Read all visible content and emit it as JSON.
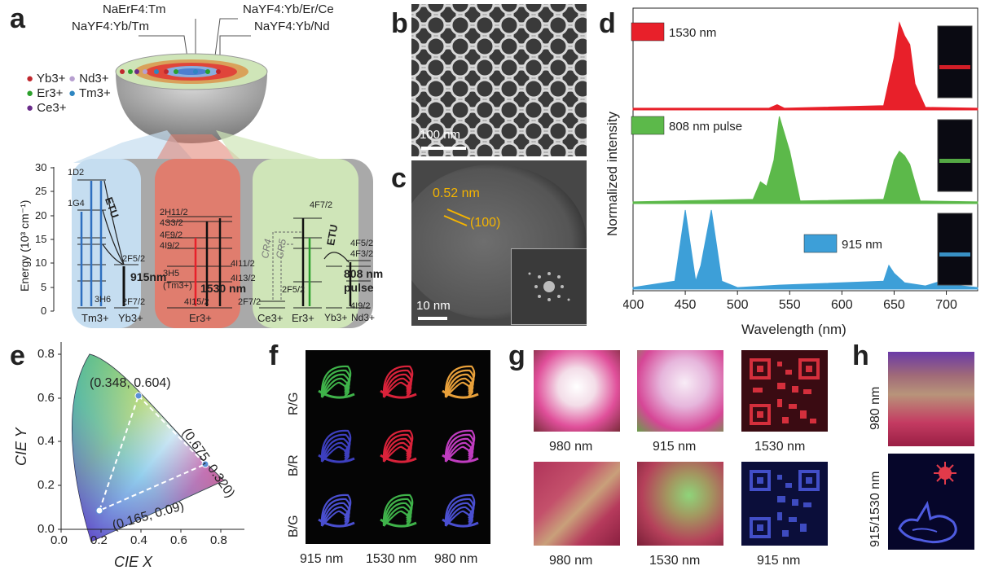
{
  "panels": {
    "a": "a",
    "b": "b",
    "c": "c",
    "d": "d",
    "e": "e",
    "f": "f",
    "g": "g",
    "h": "h"
  },
  "panel_a": {
    "shell_labels": [
      "NaErF4:Tm",
      "NaYF4:Yb/Er/Ce",
      "NaYF4:Yb/Tm",
      "NaYF4:Yb/Nd"
    ],
    "ion_legend": [
      "Yb3+",
      "Nd3+",
      "Er3+",
      "Tm3+",
      "Ce3+"
    ],
    "ion_colors": {
      "Yb": "#c0272d",
      "Nd": "#b79fd0",
      "Er": "#2ca02c",
      "Tm": "#2e86c1",
      "Ce": "#6a2c8a"
    },
    "y_axis_label": "Energy (10³ cm⁻¹)",
    "y_ticks": [
      "0",
      "5",
      "10",
      "15",
      "20",
      "25",
      "30"
    ],
    "bottom_ions": [
      "Tm3+",
      "Yb3+",
      "Er3+",
      "Ce3+",
      "Er3+",
      "Yb3+",
      "Nd3+"
    ],
    "excitations": [
      "915nm",
      "1530 nm",
      "808 nm",
      "pulse"
    ],
    "etu": "ETU",
    "cr": [
      "CR4",
      "CR5"
    ],
    "level_labels": [
      "1D2",
      "1G4",
      "3H6",
      "2F5/2",
      "2F7/2",
      "3H5",
      "(Tm3+)",
      "2H11/2",
      "4S3/2",
      "4F9/2",
      "4I9/2",
      "4I11/2",
      "4I13/2",
      "4I15/2",
      "2F7/2",
      "2F5/2",
      "4F7/2",
      "4F5/2",
      "4F3/2",
      "4I9/2"
    ],
    "colors": {
      "tm_bg": "#c5ddf0",
      "er_bg": "#e07d6e",
      "ce_bg": "#cfe5b8",
      "shell_gray": "#a9a9a9"
    }
  },
  "panel_b": {
    "scale_bar": "100 nm"
  },
  "panel_c": {
    "lattice": "0.52 nm",
    "plane": "(100)",
    "scale_bar": "10 nm"
  },
  "panel_d": {
    "ylabel": "Normalized intensity",
    "xlabel": "Wavelength (nm)",
    "xticks": [
      400,
      450,
      500,
      550,
      600,
      650,
      700
    ],
    "legends": [
      {
        "label": "1530 nm",
        "color": "#e8202a"
      },
      {
        "label": "808 nm pulse",
        "color": "#5cb94a"
      },
      {
        "label": "915 nm",
        "color": "#3d9fd8"
      }
    ]
  },
  "panel_e": {
    "xlabel": "CIE X",
    "ylabel": "CIE Y",
    "xticks": [
      "0.0",
      "0.2",
      "0.4",
      "0.6",
      "0.8"
    ],
    "yticks": [
      "0.0",
      "0.2",
      "0.4",
      "0.6",
      "0.8"
    ],
    "points": [
      "(0.348, 0.604)",
      "(0.675, 0.320)",
      "(0.165, 0.09)"
    ]
  },
  "panel_f": {
    "rows": [
      "R/G",
      "B/R",
      "B/G"
    ],
    "cols": [
      "915 nm",
      "1530 nm",
      "980 nm"
    ],
    "colors": [
      [
        "#3fb34a",
        "#d9223a",
        "#e8a03a"
      ],
      [
        "#3d3fbf",
        "#d9223a",
        "#c03cc0"
      ],
      [
        "#4a4fd0",
        "#3fb34a",
        "#4a4fd0"
      ]
    ]
  },
  "panel_g": {
    "top_labels": [
      "980 nm",
      "915 nm",
      "1530 nm"
    ],
    "bottom_labels": [
      "980 nm",
      "1530 nm",
      "915 nm"
    ]
  },
  "panel_h": {
    "labels": [
      "980 nm",
      "915/1530 nm"
    ]
  },
  "chart_data": {
    "type": "line",
    "title": "",
    "xlabel": "Wavelength (nm)",
    "ylabel": "Normalized intensity",
    "xlim": [
      400,
      730
    ],
    "series": [
      {
        "name": "1530 nm",
        "x": [
          400,
          530,
          538,
          545,
          640,
          650,
          655,
          660,
          665,
          670,
          680,
          730
        ],
        "y": [
          0.02,
          0.02,
          0.06,
          0.02,
          0.05,
          0.6,
          1.0,
          0.85,
          0.75,
          0.3,
          0.03,
          0.02
        ]
      },
      {
        "name": "808 nm pulse",
        "x": [
          400,
          515,
          522,
          528,
          535,
          540,
          545,
          550,
          560,
          640,
          650,
          655,
          660,
          665,
          675,
          730
        ],
        "y": [
          0.02,
          0.05,
          0.25,
          0.2,
          0.5,
          1.0,
          0.8,
          0.6,
          0.03,
          0.05,
          0.5,
          0.6,
          0.55,
          0.45,
          0.03,
          0.02
        ]
      },
      {
        "name": "915 nm",
        "x": [
          400,
          440,
          450,
          460,
          465,
          475,
          485,
          500,
          540,
          640,
          645,
          650,
          660,
          680,
          695,
          700,
          730
        ],
        "y": [
          0.02,
          0.1,
          1.0,
          0.1,
          0.3,
          1.0,
          0.1,
          0.02,
          0.05,
          0.1,
          0.3,
          0.2,
          0.08,
          0.04,
          0.1,
          0.06,
          0.02
        ]
      }
    ]
  }
}
